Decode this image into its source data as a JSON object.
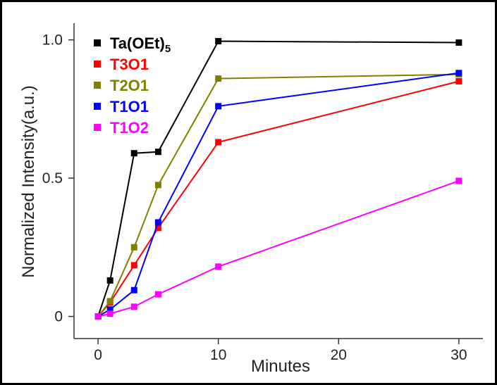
{
  "chart_data": {
    "type": "line",
    "title": "",
    "xlabel": "Minutes",
    "ylabel": "Normalized Intensity(a.u.)",
    "xlim": [
      -2,
      32
    ],
    "ylim": [
      -0.08,
      1.06
    ],
    "x_ticks": [
      0,
      10,
      20,
      30
    ],
    "y_ticks": [
      0,
      0.5,
      1.0
    ],
    "y_tick_labels": [
      "0",
      "0.5",
      "1.0"
    ],
    "grid": false,
    "legend_position": "top-left",
    "x": [
      0,
      1,
      3,
      5,
      10,
      30
    ],
    "series": [
      {
        "name": "Ta(OEt)",
        "name_subscript": "5",
        "color": "#000000",
        "values": [
          0.0,
          0.13,
          0.59,
          0.595,
          0.995,
          0.99
        ]
      },
      {
        "name": "T3O1",
        "color": "#ff0000",
        "values": [
          0.0,
          0.05,
          0.185,
          0.32,
          0.63,
          0.85
        ]
      },
      {
        "name": "T2O1",
        "color": "#808000",
        "values": [
          0.0,
          0.055,
          0.25,
          0.475,
          0.86,
          0.875
        ]
      },
      {
        "name": "T1O1",
        "color": "#0000ff",
        "values": [
          0.0,
          0.025,
          0.095,
          0.34,
          0.76,
          0.88
        ]
      },
      {
        "name": "T1O2",
        "color": "#ff00ff",
        "values": [
          0.0,
          0.01,
          0.035,
          0.08,
          0.18,
          0.49
        ]
      }
    ]
  }
}
